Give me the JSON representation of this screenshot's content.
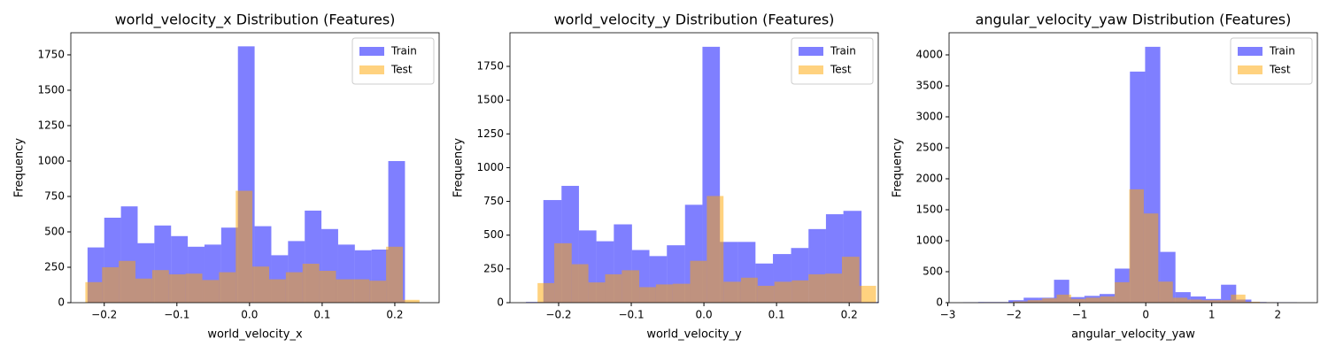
{
  "chart_data": [
    {
      "type": "histogram",
      "title": "world_velocity_x Distribution (Features)",
      "x_label": "world_velocity_x",
      "y_label": "Frequency",
      "xlim": [
        -0.246,
        0.261
      ],
      "ylim": [
        0,
        1906
      ],
      "xticks": [
        {
          "value": -0.2,
          "label": "−0.2"
        },
        {
          "value": -0.1,
          "label": "−0.1"
        },
        {
          "value": 0,
          "label": "0.0"
        },
        0.1,
        0.2
      ],
      "yticks": [
        0,
        250,
        500,
        750,
        1000,
        1250,
        1500,
        1750
      ],
      "legend": "upper right",
      "series": [
        {
          "name": "Train",
          "color": "#0000ff",
          "bins": [
            -0.223,
            -0.2,
            -0.177,
            -0.154,
            -0.131,
            -0.108,
            -0.085,
            -0.062,
            -0.039,
            -0.016,
            0.007,
            0.03,
            0.053,
            0.076,
            0.099,
            0.122,
            0.145,
            0.168,
            0.191,
            0.214
          ],
          "values": [
            390,
            600,
            680,
            420,
            545,
            470,
            395,
            410,
            530,
            1810,
            540,
            335,
            435,
            650,
            520,
            410,
            370,
            375,
            1000
          ]
        },
        {
          "name": "Test",
          "color": "#ffa500",
          "bins": [
            -0.226,
            -0.203,
            -0.18,
            -0.157,
            -0.134,
            -0.111,
            -0.088,
            -0.065,
            -0.042,
            -0.019,
            0.004,
            0.027,
            0.05,
            0.073,
            0.096,
            0.119,
            0.142,
            0.165,
            0.188,
            0.211,
            0.234
          ],
          "values": [
            145,
            250,
            295,
            170,
            230,
            200,
            205,
            160,
            215,
            790,
            255,
            165,
            215,
            275,
            225,
            165,
            165,
            155,
            395,
            20
          ]
        }
      ]
    },
    {
      "type": "histogram",
      "title": "world_velocity_y Distribution (Features)",
      "x_label": "world_velocity_y",
      "y_label": "Frequency",
      "xlim": [
        -0.267,
        0.24
      ],
      "ylim": [
        0,
        1999
      ],
      "xticks": [
        {
          "value": -0.2,
          "label": "−0.2"
        },
        {
          "value": -0.1,
          "label": "−0.1"
        },
        {
          "value": 0,
          "label": "0.0"
        },
        0.1,
        0.2
      ],
      "yticks": [
        0,
        250,
        500,
        750,
        1000,
        1250,
        1500,
        1750
      ],
      "legend": "upper right",
      "series": [
        {
          "name": "Train",
          "color": "#0000ff",
          "bins": [
            -0.245,
            -0.221,
            -0.196,
            -0.172,
            -0.148,
            -0.124,
            -0.099,
            -0.075,
            -0.051,
            -0.026,
            -0.002,
            0.022,
            0.047,
            0.071,
            0.095,
            0.12,
            0.144,
            0.168,
            0.192,
            0.217,
            0.241
          ],
          "values": [
            5,
            760,
            865,
            535,
            455,
            580,
            390,
            345,
            425,
            725,
            1895,
            450,
            450,
            290,
            360,
            405,
            545,
            655,
            680,
            5
          ]
        },
        {
          "name": "Test",
          "color": "#ffa500",
          "bins": [
            -0.229,
            -0.206,
            -0.182,
            -0.159,
            -0.136,
            -0.113,
            -0.089,
            -0.066,
            -0.043,
            -0.019,
            0.004,
            0.027,
            0.051,
            0.074,
            0.097,
            0.121,
            0.144,
            0.167,
            0.19,
            0.214,
            0.237
          ],
          "values": [
            145,
            440,
            285,
            150,
            210,
            240,
            115,
            135,
            140,
            310,
            790,
            155,
            185,
            125,
            155,
            165,
            210,
            215,
            340,
            125
          ]
        }
      ]
    },
    {
      "type": "histogram",
      "title": "angular_velocity_yaw Distribution (Features)",
      "x_label": "angular_velocity_yaw",
      "y_label": "Frequency",
      "xlim": [
        -2.98,
        2.6
      ],
      "ylim": [
        0,
        4357
      ],
      "xticks": [
        {
          "value": -3,
          "label": "−3"
        },
        {
          "value": -2,
          "label": "−2"
        },
        {
          "value": -1,
          "label": "−1"
        },
        0,
        1,
        2
      ],
      "yticks": [
        0,
        500,
        1000,
        1500,
        2000,
        2500,
        3000,
        3500,
        4000
      ],
      "legend": "upper right",
      "series": [
        {
          "name": "Train",
          "color": "#0000ff",
          "bins": [
            -2.77,
            -2.54,
            -2.31,
            -2.08,
            -1.85,
            -1.62,
            -1.39,
            -1.16,
            -0.93,
            -0.7,
            -0.47,
            -0.24,
            -0.01,
            0.22,
            0.45,
            0.68,
            0.91,
            1.14,
            1.37,
            1.6,
            1.83,
            2.06,
            2.29
          ],
          "values": [
            5,
            10,
            10,
            40,
            80,
            80,
            370,
            90,
            110,
            140,
            550,
            3730,
            4130,
            820,
            170,
            100,
            60,
            290,
            50,
            10,
            5,
            5
          ]
        },
        {
          "name": "Test",
          "color": "#ffa500",
          "bins": [
            -2.45,
            -2.23,
            -2.01,
            -1.79,
            -1.57,
            -1.35,
            -1.13,
            -0.91,
            -0.69,
            -0.47,
            -0.25,
            -0.03,
            0.19,
            0.41,
            0.63,
            0.85,
            1.07,
            1.29,
            1.51,
            1.73,
            1.95
          ],
          "values": [
            5,
            5,
            20,
            40,
            70,
            130,
            60,
            80,
            100,
            330,
            1830,
            1440,
            340,
            80,
            50,
            40,
            40,
            130,
            15,
            5
          ]
        }
      ]
    }
  ]
}
